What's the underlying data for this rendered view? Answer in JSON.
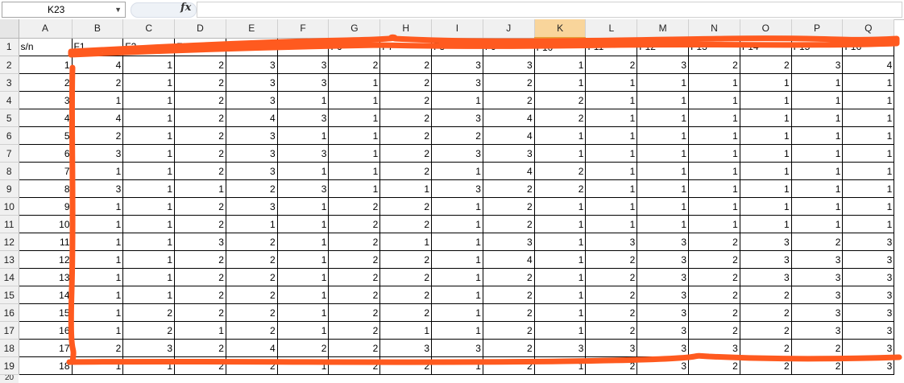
{
  "formula_bar": {
    "name_box": "K23",
    "fx_label": "fx",
    "formula": ""
  },
  "columns": [
    "A",
    "B",
    "C",
    "D",
    "E",
    "F",
    "G",
    "H",
    "I",
    "J",
    "K",
    "L",
    "M",
    "N",
    "O",
    "P",
    "Q"
  ],
  "selected_column": "K",
  "row_numbers": [
    1,
    2,
    3,
    4,
    5,
    6,
    7,
    8,
    9,
    10,
    11,
    12,
    13,
    14,
    15,
    16,
    17,
    18,
    19,
    20
  ],
  "header_row": [
    "s/n",
    "F1",
    "F2",
    "F3",
    "F4",
    "F4",
    "F6",
    "F7",
    "F8",
    "F9",
    "F10",
    "F11",
    "F12",
    "F13",
    "F14",
    "F15",
    "F16"
  ],
  "data_rows": [
    [
      1,
      4,
      1,
      2,
      3,
      3,
      2,
      2,
      3,
      3,
      1,
      2,
      3,
      2,
      2,
      3,
      4
    ],
    [
      2,
      2,
      1,
      2,
      3,
      3,
      1,
      2,
      3,
      2,
      1,
      1,
      1,
      1,
      1,
      1,
      1
    ],
    [
      3,
      1,
      1,
      2,
      3,
      1,
      1,
      2,
      1,
      2,
      2,
      1,
      1,
      1,
      1,
      1,
      1
    ],
    [
      4,
      4,
      1,
      2,
      4,
      3,
      1,
      2,
      3,
      4,
      2,
      1,
      1,
      1,
      1,
      1,
      1
    ],
    [
      5,
      2,
      1,
      2,
      3,
      1,
      1,
      2,
      2,
      4,
      1,
      1,
      1,
      1,
      1,
      1,
      1
    ],
    [
      6,
      3,
      1,
      2,
      3,
      3,
      1,
      2,
      3,
      3,
      1,
      1,
      1,
      1,
      1,
      1,
      1
    ],
    [
      7,
      1,
      1,
      2,
      3,
      1,
      1,
      2,
      1,
      4,
      2,
      1,
      1,
      1,
      1,
      1,
      1
    ],
    [
      8,
      3,
      1,
      1,
      2,
      3,
      1,
      1,
      3,
      2,
      2,
      1,
      1,
      1,
      1,
      1,
      1
    ],
    [
      9,
      1,
      1,
      2,
      3,
      1,
      2,
      2,
      1,
      2,
      1,
      1,
      1,
      1,
      1,
      1,
      1
    ],
    [
      10,
      1,
      1,
      2,
      1,
      1,
      2,
      2,
      1,
      2,
      1,
      1,
      1,
      1,
      1,
      1,
      1
    ],
    [
      11,
      1,
      1,
      3,
      2,
      1,
      2,
      1,
      1,
      3,
      1,
      3,
      3,
      2,
      3,
      2,
      3
    ],
    [
      12,
      1,
      1,
      2,
      2,
      1,
      2,
      2,
      1,
      4,
      1,
      2,
      3,
      2,
      3,
      3,
      3
    ],
    [
      13,
      1,
      1,
      2,
      2,
      1,
      2,
      2,
      1,
      2,
      1,
      2,
      3,
      2,
      3,
      3,
      3
    ],
    [
      14,
      1,
      1,
      2,
      2,
      1,
      2,
      2,
      1,
      2,
      1,
      2,
      3,
      2,
      2,
      3,
      3
    ],
    [
      15,
      1,
      2,
      2,
      2,
      1,
      2,
      2,
      1,
      2,
      1,
      2,
      3,
      2,
      2,
      3,
      3
    ],
    [
      16,
      1,
      2,
      1,
      2,
      1,
      2,
      1,
      1,
      2,
      1,
      2,
      3,
      2,
      2,
      3,
      3
    ],
    [
      17,
      2,
      3,
      2,
      4,
      2,
      2,
      3,
      3,
      2,
      3,
      3,
      3,
      3,
      2,
      2,
      3
    ],
    [
      18,
      1,
      1,
      2,
      2,
      1,
      2,
      2,
      1,
      2,
      1,
      2,
      3,
      2,
      2,
      2,
      3
    ]
  ],
  "annotation": {
    "color": "#ff5a1f"
  }
}
